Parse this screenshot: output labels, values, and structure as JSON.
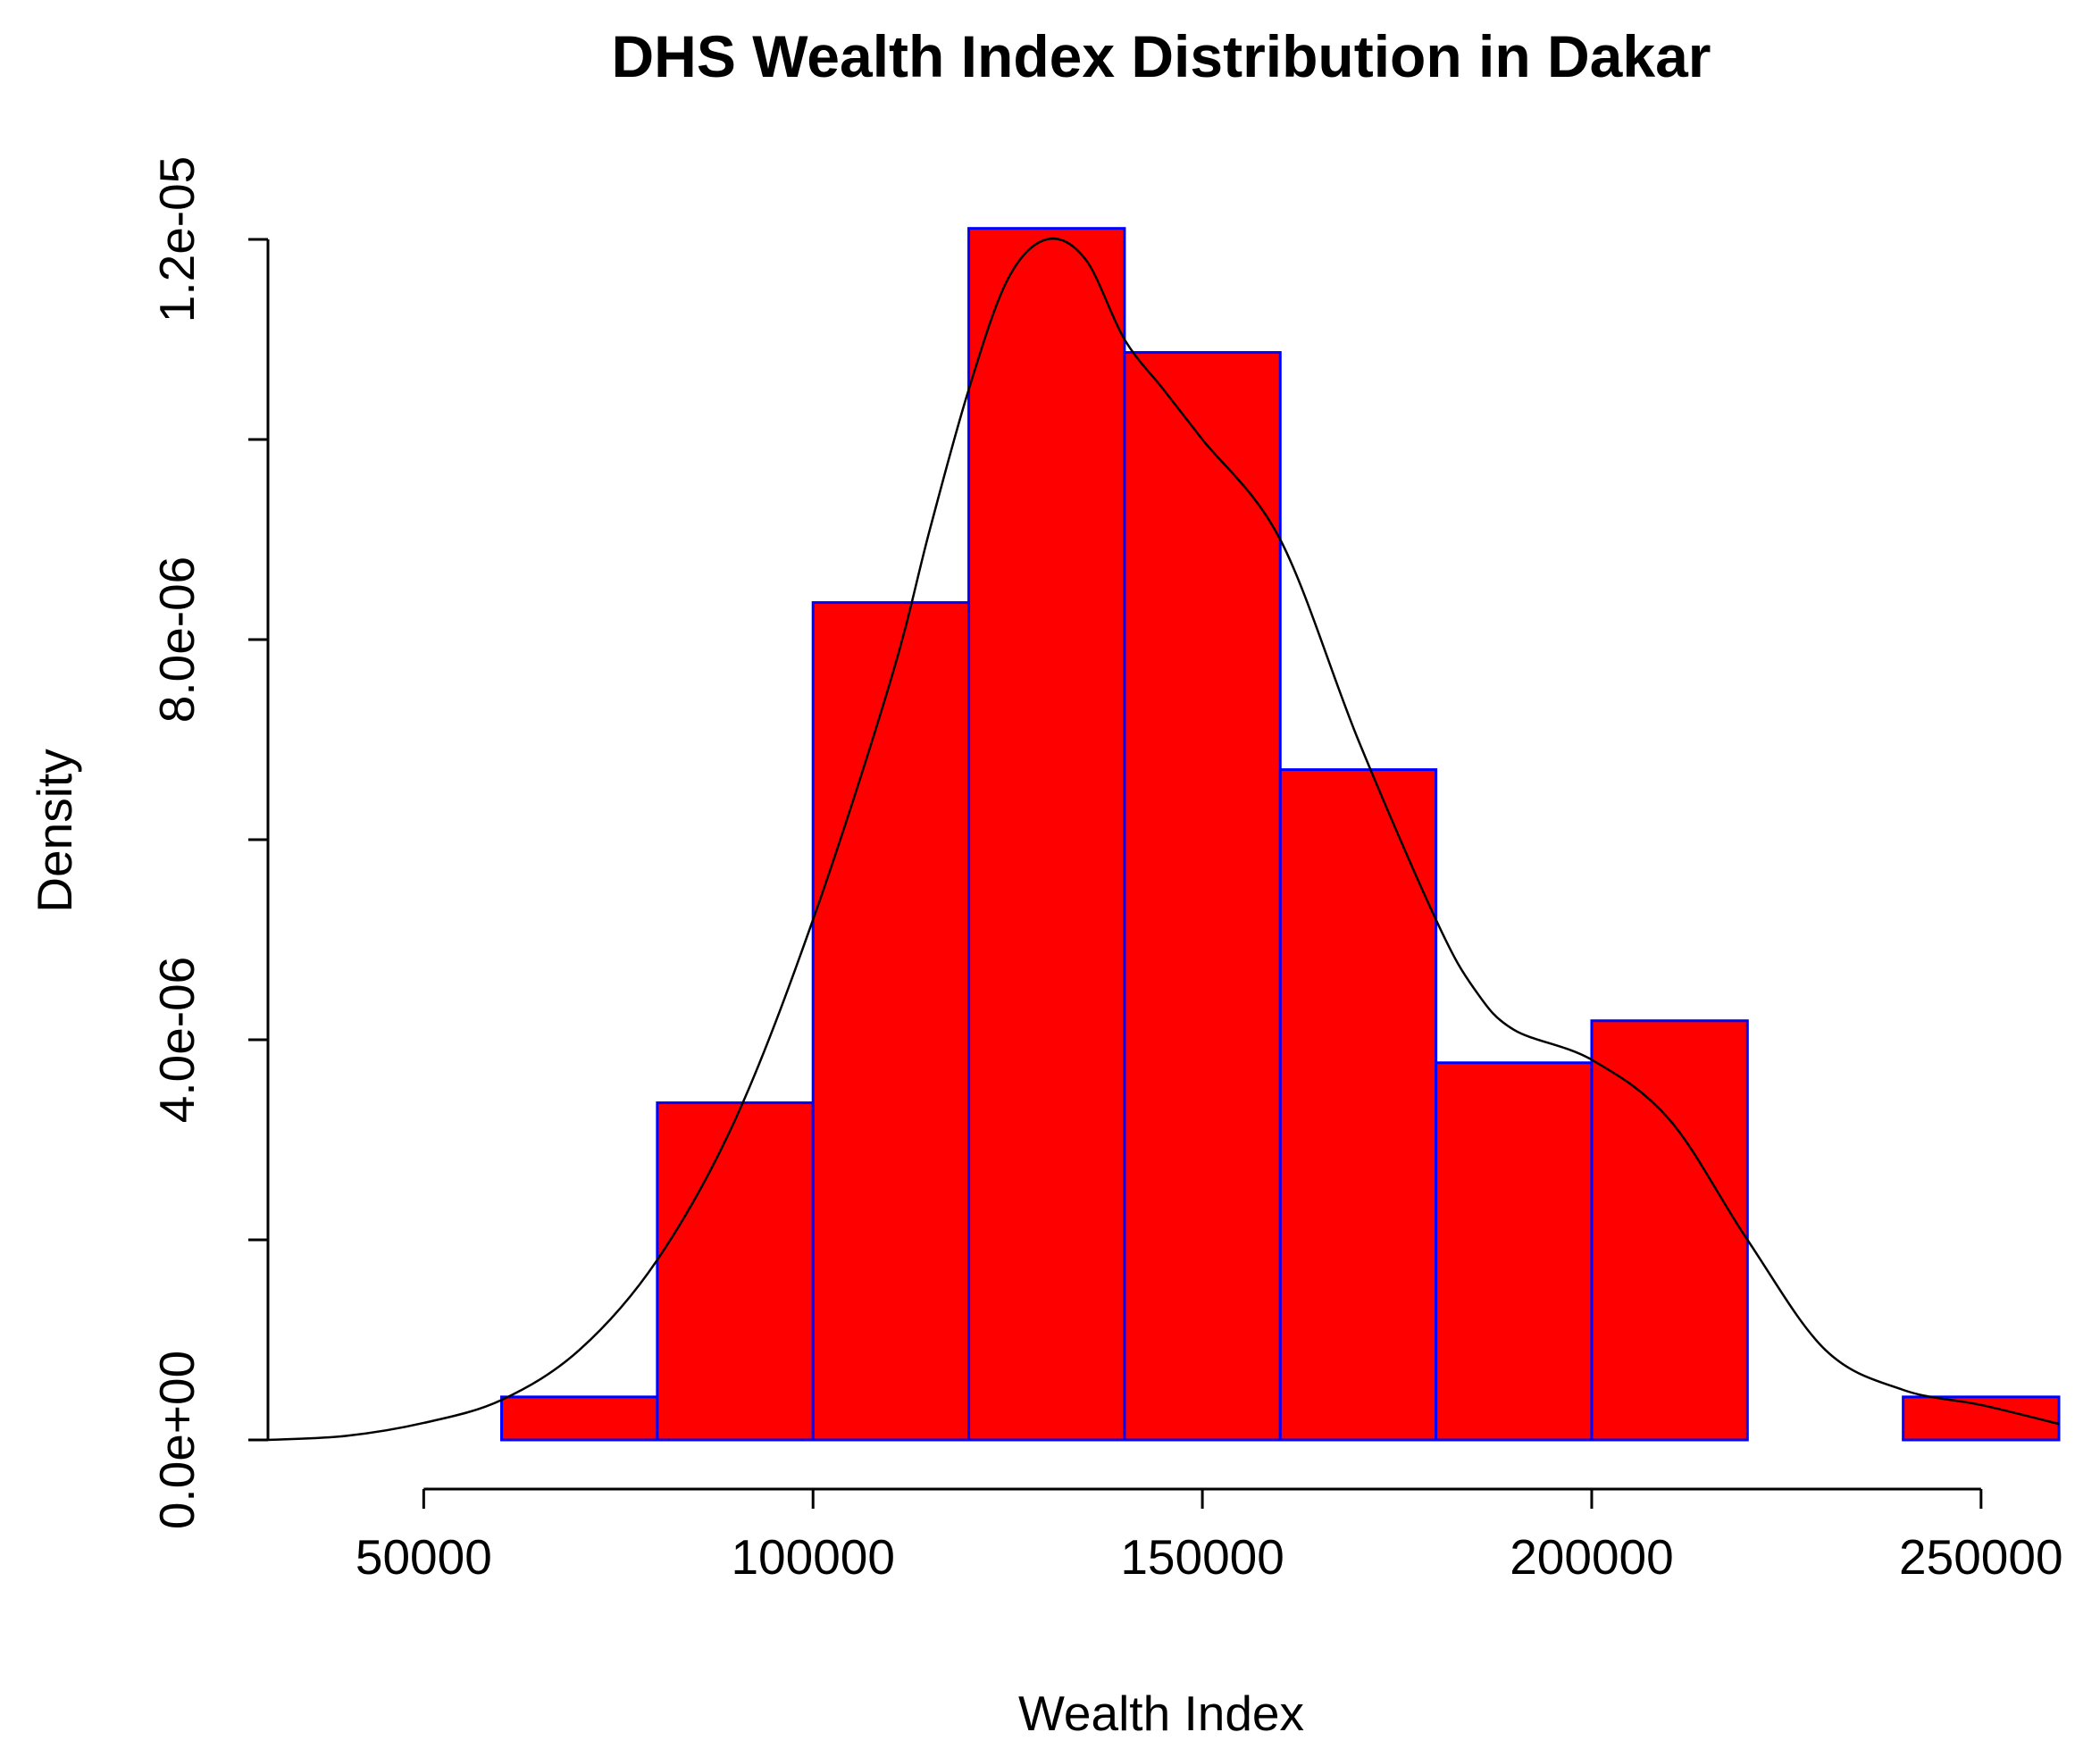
{
  "chart_data": {
    "type": "bar",
    "title": "DHS Wealth Index Distribution in Dakar",
    "xlabel": "Wealth Index",
    "ylabel": "Density",
    "xlim": [
      30000,
      260000
    ],
    "ylim": [
      0,
      1.2e-05
    ],
    "x_ticks": [
      50000,
      100000,
      150000,
      200000,
      250000
    ],
    "x_tick_labels": [
      "50000",
      "100000",
      "150000",
      "200000",
      "250000"
    ],
    "y_ticks": [
      0,
      2e-06,
      4e-06,
      6e-06,
      8e-06,
      1e-05,
      1.2e-05
    ],
    "y_tick_labels": [
      "0.0e+00",
      "",
      "4.0e-06",
      "",
      "8.0e-06",
      "",
      "1.2e-05"
    ],
    "bin_width": 20000,
    "bins": [
      {
        "start": 60000,
        "end": 80000,
        "density": 4.3e-07
      },
      {
        "start": 80000,
        "end": 100000,
        "density": 3.37e-06
      },
      {
        "start": 100000,
        "end": 120000,
        "density": 8.37e-06
      },
      {
        "start": 120000,
        "end": 140000,
        "density": 1.211e-05
      },
      {
        "start": 140000,
        "end": 160000,
        "density": 1.087e-05
      },
      {
        "start": 160000,
        "end": 180000,
        "density": 6.7e-06
      },
      {
        "start": 180000,
        "end": 200000,
        "density": 3.77e-06
      },
      {
        "start": 200000,
        "end": 220000,
        "density": 4.19e-06
      },
      {
        "start": 220000,
        "end": 240000,
        "density": 0
      },
      {
        "start": 240000,
        "end": 260000,
        "density": 4.3e-07
      }
    ],
    "density_curve": {
      "x": [
        30000,
        40000,
        50000,
        60000,
        70000,
        80000,
        90000,
        100000,
        110000,
        115000,
        120000,
        125000,
        130000,
        135000,
        140000,
        145000,
        150000,
        160000,
        170000,
        180000,
        185000,
        190000,
        200000,
        210000,
        220000,
        230000,
        240000,
        250000,
        260000
      ],
      "y": [
        0,
        4e-08,
        1.7e-07,
        4e-07,
        9e-07,
        1.8e-06,
        3.2e-06,
        5.2e-06,
        7.6e-06,
        9.1e-06,
        1.05e-05,
        1.16e-05,
        1.2e-05,
        1.18e-05,
        1.1e-05,
        1.05e-05,
        1e-05,
        9e-06,
        7e-06,
        5.2e-06,
        4.5e-06,
        4.1e-06,
        3.8e-06,
        3.2e-06,
        2e-06,
        9e-07,
        5e-07,
        3.5e-07,
        1.6e-07
      ]
    },
    "colors": {
      "bar_fill": "#ff0000",
      "bar_border": "#0000ff",
      "curve": "#000000"
    },
    "grid": false,
    "legend": "none"
  }
}
